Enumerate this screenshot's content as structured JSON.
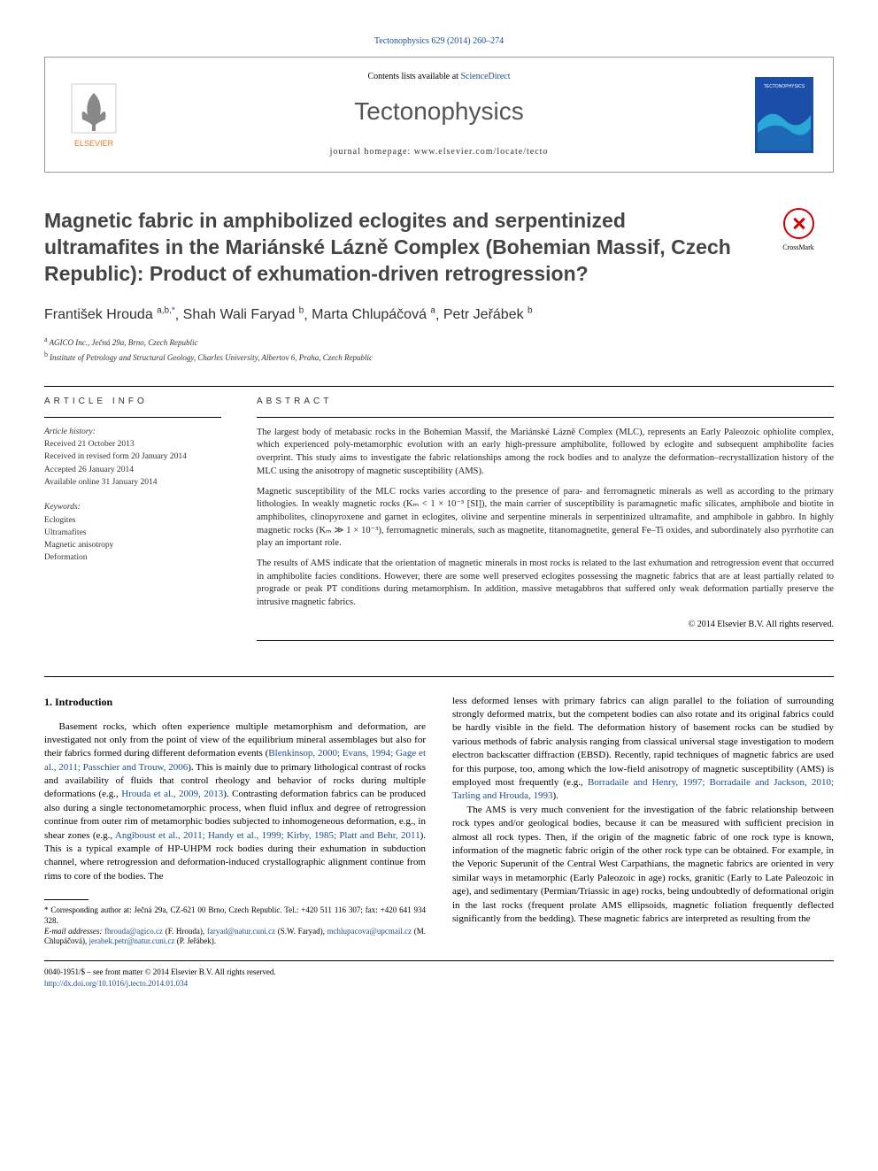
{
  "journal_ref": {
    "text": "Tectonophysics 629 (2014) 260–274",
    "link_text": "Tectonophysics 629 (2014) 260–274"
  },
  "header": {
    "contents_prefix": "Contents lists available at ",
    "contents_link": "ScienceDirect",
    "journal_name": "Tectonophysics",
    "homepage_prefix": "journal homepage: ",
    "homepage_url": "www.elsevier.com/locate/tecto",
    "cover_label": "TECTONOPHYSICS",
    "cover_bg": "#1a4ea8",
    "cover_accent": "#2aa8d8"
  },
  "elsevier_logo": {
    "text": "ELSEVIER",
    "color": "#e87722"
  },
  "crossmark_label": "CrossMark",
  "title": "Magnetic fabric in amphibolized eclogites and serpentinized ultramafites in the Mariánské Lázně Complex (Bohemian Massif, Czech Republic): Product of exhumation-driven retrogression?",
  "authors": [
    {
      "name": "František Hrouda",
      "sup": "a,b,",
      "asterisk": "*"
    },
    {
      "name": "Shah Wali Faryad",
      "sup": "b"
    },
    {
      "name": "Marta Chlupáčová",
      "sup": "a"
    },
    {
      "name": "Petr Jeřábek",
      "sup": "b"
    }
  ],
  "affiliations": [
    {
      "sup": "a",
      "text": "AGICO Inc., Ječná 29a, Brno, Czech Republic"
    },
    {
      "sup": "b",
      "text": "Institute of Petrology and Structural Geology, Charles University, Albertov 6, Praha, Czech Republic"
    }
  ],
  "article_info": {
    "header": "ARTICLE INFO",
    "history_label": "Article history:",
    "history": [
      "Received 21 October 2013",
      "Received in revised form 20 January 2014",
      "Accepted 26 January 2014",
      "Available online 31 January 2014"
    ],
    "keywords_label": "Keywords:",
    "keywords": [
      "Eclogites",
      "Ultramafites",
      "Magnetic anisotropy",
      "Deformation"
    ]
  },
  "abstract": {
    "header": "ABSTRACT",
    "paragraphs": [
      "The largest body of metabasic rocks in the Bohemian Massif, the Mariánské Lázně Complex (MLC), represents an Early Paleozoic ophiolite complex, which experienced poly-metamorphic evolution with an early high-pressure amphibolite, followed by eclogite and subsequent amphibolite facies overprint. This study aims to investigate the fabric relationships among the rock bodies and to analyze the deformation–recrystallization history of the MLC using the anisotropy of magnetic susceptibility (AMS).",
      "Magnetic susceptibility of the MLC rocks varies according to the presence of para- and ferromagnetic minerals as well as according to the primary lithologies. In weakly magnetic rocks (Kₘ < 1 × 10⁻³ [SI]), the main carrier of susceptibility is paramagnetic mafic silicates, amphibole and biotite in amphibolites, clinopyroxene and garnet in eclogites, olivine and serpentine minerals in serpentinized ultramafite, and amphibole in gabbro. In highly magnetic rocks (Kₘ ≫ 1 × 10⁻³), ferromagnetic minerals, such as magnetite, titanomagnetite, general Fe–Ti oxides, and subordinately also pyrrhotite can play an important role.",
      "The results of AMS indicate that the orientation of magnetic minerals in most rocks is related to the last exhumation and retrogression event that occurred in amphibolite facies conditions. However, there are some well preserved eclogites possessing the magnetic fabrics that are at least partially related to prograde or peak PT conditions during metamorphism. In addition, massive metagabbros that suffered only weak deformation partially preserve the intrusive magnetic fabrics."
    ],
    "copyright": "© 2014 Elsevier B.V. All rights reserved."
  },
  "body": {
    "section_heading": "1. Introduction",
    "left_paragraphs": [
      {
        "text": "Basement rocks, which often experience multiple metamorphism and deformation, are investigated not only from the point of view of the equilibrium mineral assemblages but also for their fabrics formed during different deformation events (",
        "link1": "Blenkinsop, 2000; Evans, 1994; Gage et al., 2011; Passchier and Trouw, 2006",
        "text2": "). This is mainly due to primary lithological contrast of rocks and availability of fluids that control rheology and behavior of rocks during multiple deformations (e.g., ",
        "link2": "Hrouda et al., 2009, 2013",
        "text3": "). Contrasting deformation fabrics can be produced also during a single tectonometamorphic process, when fluid influx and degree of retrogression continue from outer rim of metamorphic bodies subjected to inhomogeneous deformation, e.g., in shear zones (e.g., ",
        "link3": "Angiboust et al., 2011; Handy et al., 1999; Kirby, 1985; Platt and Behr, 2011",
        "text4": "). This is a typical example of HP-UHPM rock bodies during their exhumation in subduction channel, where retrogression and deformation-induced crystallographic alignment continue from rims to core of the bodies. The"
      }
    ],
    "right_paragraphs": [
      {
        "text": "less deformed lenses with primary fabrics can align parallel to the foliation of surrounding strongly deformed matrix, but the competent bodies can also rotate and its original fabrics could be hardly visible in the field. The deformation history of basement rocks can be studied by various methods of fabric analysis ranging from classical universal stage investigation to modern electron backscatter diffraction (EBSD). Recently, rapid techniques of magnetic fabrics are used for this purpose, too, among which the low-field anisotropy of magnetic susceptibility (AMS) is employed most frequently (e.g., ",
        "link1": "Borradaile and Henry, 1997; Borradaile and Jackson, 2010; Tarling and Hrouda, 1993",
        "text2": ")."
      },
      {
        "text": "The AMS is very much convenient for the investigation of the fabric relationship between rock types and/or geological bodies, because it can be measured with sufficient precision in almost all rock types. Then, if the origin of the magnetic fabric of one rock type is known, information of the magnetic fabric origin of the other rock type can be obtained. For example, in the Veporic Superunit of the Central West Carpathians, the magnetic fabrics are oriented in very similar ways in metamorphic (Early Paleozoic in age) rocks, granitic (Early to Late Paleozoic in age), and sedimentary (Permian/Triassic in age) rocks, being undoubtedly of deformational origin in the last rocks (frequent prolate AMS ellipsoids, magnetic foliation frequently deflected significantly from the bedding). These magnetic fabrics are interpreted as resulting from the"
      }
    ]
  },
  "footnotes": {
    "corr_prefix": "* Corresponding author at: Ječná 29a, CZ-621 00 Brno, Czech Republic. Tel.: +420 511 116 307; fax: +420 641 934 328.",
    "email_label": "E-mail addresses: ",
    "emails": [
      {
        "addr": "fhrouda@agico.cz",
        "who": " (F. Hrouda), "
      },
      {
        "addr": "faryad@natur.cuni.cz",
        "who": " (S.W. Faryad), "
      },
      {
        "addr": "mchlupacova@upcmail.cz",
        "who": " (M. Chlupáčová), "
      },
      {
        "addr": "jerabek.petr@natur.cuni.cz",
        "who": " (P. Jeřábek)."
      }
    ]
  },
  "bottom": {
    "issn_line": "0040-1951/$ – see front matter © 2014 Elsevier B.V. All rights reserved.",
    "doi": "http://dx.doi.org/10.1016/j.tecto.2014.01.034"
  }
}
